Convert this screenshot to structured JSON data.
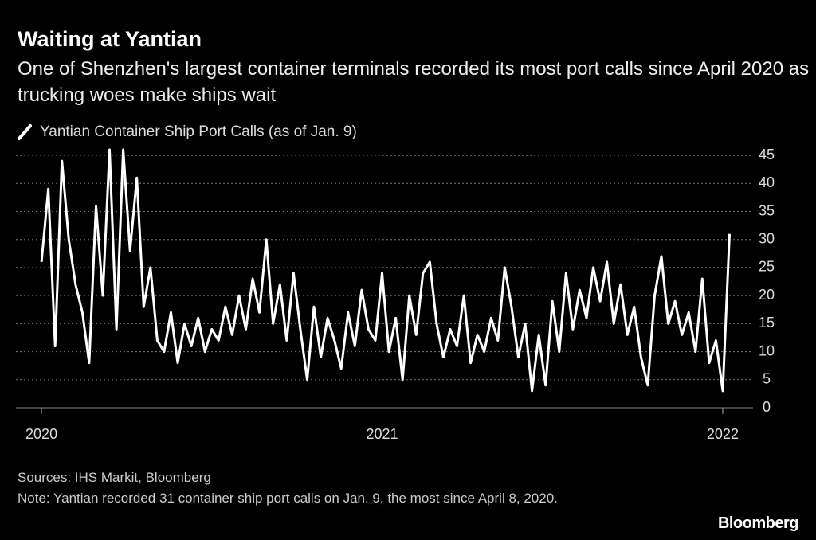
{
  "chart_data": {
    "type": "line",
    "title": "Waiting at Yantian",
    "subtitle": "One of Shenzhen's largest container terminals recorded its most port calls since April 2020 as trucking woes make ships wait",
    "source": "Sources: IHS Markit, Bloomberg",
    "note": "Note: Yantian recorded 31 container ship port calls on Jan. 9, the most since April 8, 2020.",
    "logo": "Bloomberg",
    "x": [
      2020.0,
      2020.02,
      2020.04,
      2020.06,
      2020.08,
      2020.1,
      2020.12,
      2020.14,
      2020.16,
      2020.18,
      2020.2,
      2020.22,
      2020.24,
      2020.26,
      2020.28,
      2020.3,
      2020.32,
      2020.34,
      2020.36,
      2020.38,
      2020.4,
      2020.42,
      2020.44,
      2020.46,
      2020.48,
      2020.5,
      2020.52,
      2020.54,
      2020.56,
      2020.58,
      2020.6,
      2020.62,
      2020.64,
      2020.66,
      2020.68,
      2020.7,
      2020.72,
      2020.74,
      2020.76,
      2020.78,
      2020.8,
      2020.82,
      2020.84,
      2020.86,
      2020.88,
      2020.9,
      2020.92,
      2020.94,
      2020.96,
      2020.98,
      2021.0,
      2021.02,
      2021.04,
      2021.06,
      2021.08,
      2021.1,
      2021.12,
      2021.14,
      2021.16,
      2021.18,
      2021.2,
      2021.22,
      2021.24,
      2021.26,
      2021.28,
      2021.3,
      2021.32,
      2021.34,
      2021.36,
      2021.38,
      2021.4,
      2021.42,
      2021.44,
      2021.46,
      2021.48,
      2021.5,
      2021.52,
      2021.54,
      2021.56,
      2021.58,
      2021.6,
      2021.62,
      2021.64,
      2021.66,
      2021.68,
      2021.7,
      2021.72,
      2021.74,
      2021.76,
      2021.78,
      2021.8,
      2021.82,
      2021.84,
      2021.86,
      2021.88,
      2021.9,
      2021.92,
      2021.94,
      2021.96,
      2021.98,
      2022.0,
      2022.02
    ],
    "series": [
      {
        "name": "Yantian Container Ship Port Calls (as of Jan. 9)",
        "color": "#ffffff",
        "values": [
          26,
          39,
          11,
          44,
          30,
          22,
          17,
          8,
          36,
          20,
          46,
          14,
          46,
          28,
          41,
          18,
          25,
          12,
          10,
          17,
          8,
          15,
          11,
          16,
          10,
          14,
          12,
          18,
          13,
          20,
          14,
          23,
          17,
          30,
          15,
          22,
          12,
          24,
          14,
          5,
          18,
          9,
          16,
          12,
          7,
          17,
          11,
          21,
          14,
          12,
          24,
          10,
          16,
          5,
          20,
          13,
          24,
          26,
          15,
          9,
          14,
          11,
          20,
          8,
          13,
          10,
          16,
          12,
          25,
          18,
          9,
          15,
          3,
          13,
          4,
          19,
          10,
          24,
          14,
          21,
          16,
          25,
          19,
          26,
          15,
          22,
          13,
          18,
          9,
          4,
          20,
          27,
          15,
          19,
          13,
          17,
          10,
          23,
          8,
          12,
          3,
          31
        ]
      }
    ],
    "xlim": [
      2019.925,
      2022.089
    ],
    "xticks": [
      2020,
      2021,
      2022
    ],
    "ylim": [
      0,
      47
    ],
    "yticks": [
      0,
      5,
      10,
      15,
      20,
      25,
      30,
      35,
      40,
      45
    ],
    "grid": true
  }
}
